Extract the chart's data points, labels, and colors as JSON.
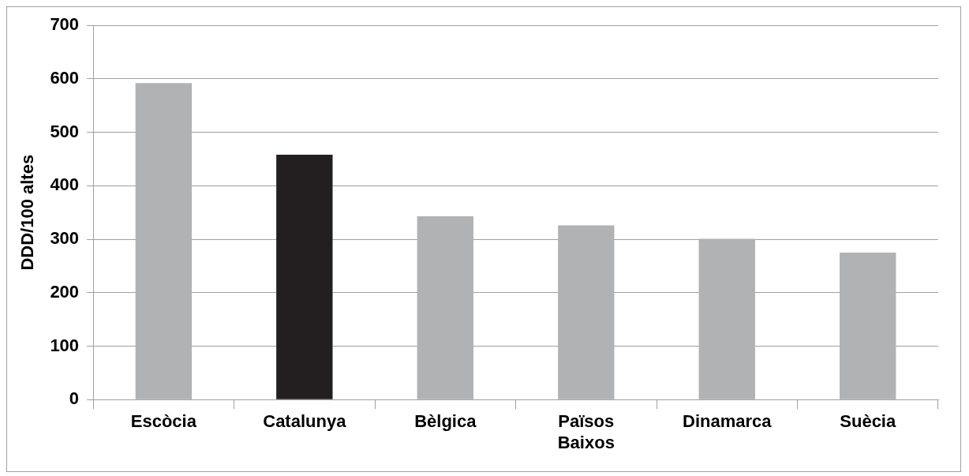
{
  "chart_data": {
    "type": "bar",
    "ylabel": "DDD/100 altes",
    "categories": [
      "Escòcia",
      "Catalunya",
      "Bèlgica",
      "Països Baixos",
      "Dinamarca",
      "Suècia"
    ],
    "values": [
      592,
      458,
      343,
      326,
      301,
      275
    ],
    "colors": [
      "#b1b2b4",
      "#231f20",
      "#b1b2b4",
      "#b1b2b4",
      "#b1b2b4",
      "#b1b2b4"
    ],
    "ylim": [
      0,
      700
    ],
    "yticks": [
      0,
      100,
      200,
      300,
      400,
      500,
      600,
      700
    ],
    "grid": "y",
    "legend": false
  }
}
